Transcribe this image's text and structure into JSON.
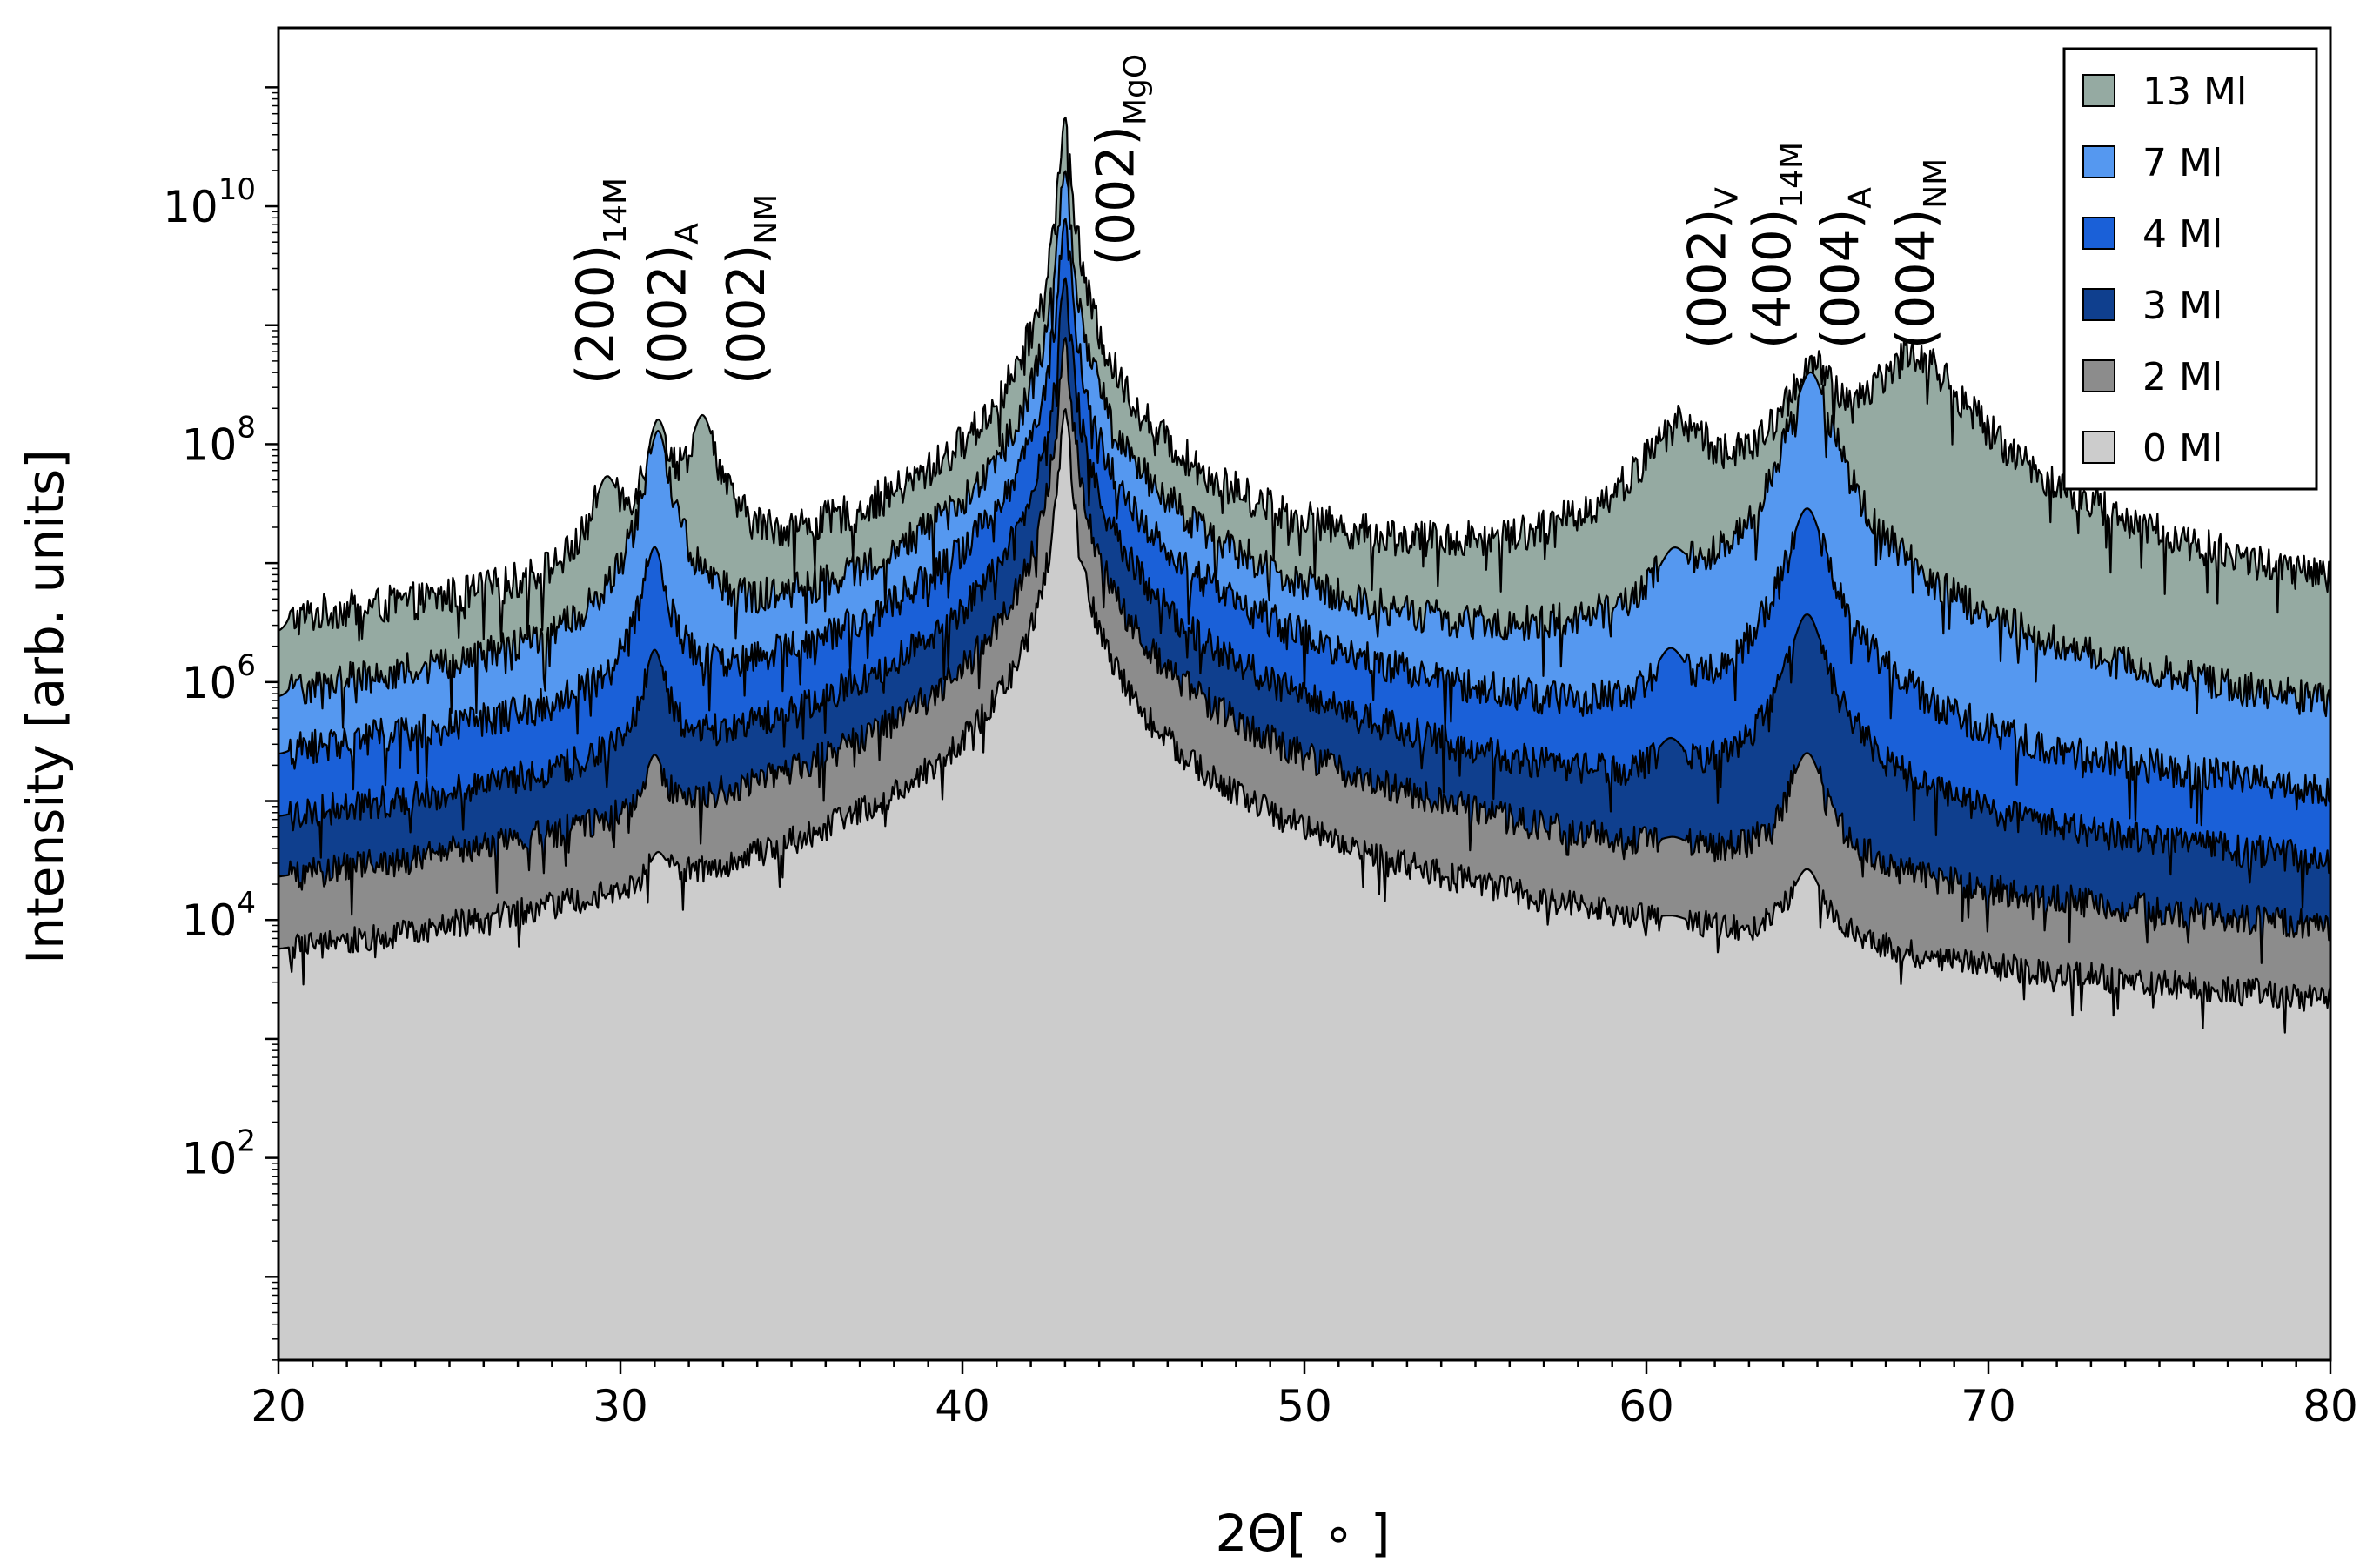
{
  "chart_data": {
    "type": "area",
    "title": "",
    "xlabel": "2Θ[ ∘ ]",
    "ylabel": "Intensity [arb. units]",
    "xlim": [
      20,
      80
    ],
    "ylim_log10": [
      0.3,
      11.5
    ],
    "yscale": "log",
    "x_ticks": [
      20,
      30,
      40,
      50,
      60,
      70,
      80
    ],
    "y_ticks": [
      {
        "exp": 2,
        "base": "10",
        "power": "2"
      },
      {
        "exp": 4,
        "base": "10",
        "power": "4"
      },
      {
        "exp": 6,
        "base": "10",
        "power": "6"
      },
      {
        "exp": 8,
        "base": "10",
        "power": "8"
      },
      {
        "exp": 10,
        "base": "10",
        "power": "10"
      }
    ],
    "legend": {
      "placement": "top-right"
    },
    "series": [
      {
        "name": "13 Ml",
        "color": "#95aaa2",
        "baseline_log10": 5.9,
        "start": [
          [
            20.0,
            5.0
          ],
          [
            20.3,
            5.9
          ],
          [
            21.5,
            6.05
          ]
        ],
        "noise_log10": 0.16,
        "peaks": [
          {
            "x": 29.6,
            "log10": 7.6,
            "w": 0.35
          },
          {
            "x": 31.1,
            "log10": 8.15,
            "w": 0.3
          },
          {
            "x": 32.4,
            "log10": 8.2,
            "w": 0.35
          },
          {
            "x": 43.0,
            "log10": 10.75,
            "w": 0.12
          },
          {
            "x": 43.0,
            "log10": 8.5,
            "w": 0.6
          },
          {
            "x": 43.0,
            "log10": 6.9,
            "w": 2.5
          },
          {
            "x": 61.0,
            "log10": 8.1,
            "w": 0.9
          },
          {
            "x": 64.8,
            "log10": 8.6,
            "w": 0.6
          },
          {
            "x": 67.8,
            "log10": 8.75,
            "w": 1.2
          }
        ]
      },
      {
        "name": "7 Ml",
        "color": "#5598f0",
        "baseline_log10": 5.0,
        "start": [
          [
            20.0,
            4.0
          ],
          [
            20.3,
            5.0
          ],
          [
            21.5,
            5.3
          ]
        ],
        "noise_log10": 0.15,
        "peaks": [
          {
            "x": 31.1,
            "log10": 8.1,
            "w": 0.28
          },
          {
            "x": 31.1,
            "log10": 6.2,
            "w": 1.0
          },
          {
            "x": 43.0,
            "log10": 10.3,
            "w": 0.12
          },
          {
            "x": 43.0,
            "log10": 7.9,
            "w": 0.6
          },
          {
            "x": 43.0,
            "log10": 6.1,
            "w": 2.5
          },
          {
            "x": 60.8,
            "log10": 6.85,
            "w": 0.45
          },
          {
            "x": 64.8,
            "log10": 8.6,
            "w": 0.45
          },
          {
            "x": 64.8,
            "log10": 6.5,
            "w": 1.6
          }
        ]
      },
      {
        "name": "4 Ml",
        "color": "#1a60d8",
        "baseline_log10": 4.0,
        "start": [
          [
            20.0,
            3.0
          ],
          [
            20.3,
            4.0
          ],
          [
            21.5,
            4.6
          ]
        ],
        "noise_log10": 0.15,
        "peaks": [
          {
            "x": 31.0,
            "log10": 7.1,
            "w": 0.28
          },
          {
            "x": 31.0,
            "log10": 5.3,
            "w": 1.0
          },
          {
            "x": 43.0,
            "log10": 9.9,
            "w": 0.12
          },
          {
            "x": 43.0,
            "log10": 7.4,
            "w": 0.6
          },
          {
            "x": 43.0,
            "log10": 5.2,
            "w": 2.5
          },
          {
            "x": 60.7,
            "log10": 6.05,
            "w": 0.45
          },
          {
            "x": 64.7,
            "log10": 7.45,
            "w": 0.45
          },
          {
            "x": 64.7,
            "log10": 5.6,
            "w": 1.8
          }
        ]
      },
      {
        "name": "3 Ml",
        "color": "#0f3f8e",
        "baseline_log10": 3.0,
        "start": [
          [
            20.0,
            2.0
          ],
          [
            20.3,
            3.0
          ],
          [
            21.5,
            3.6
          ]
        ],
        "noise_log10": 0.14,
        "peaks": [
          {
            "x": 31.0,
            "log10": 6.2,
            "w": 0.28
          },
          {
            "x": 31.0,
            "log10": 4.3,
            "w": 1.0
          },
          {
            "x": 43.0,
            "log10": 9.4,
            "w": 0.12
          },
          {
            "x": 43.0,
            "log10": 6.8,
            "w": 0.6
          },
          {
            "x": 43.0,
            "log10": 4.3,
            "w": 2.5
          },
          {
            "x": 60.7,
            "log10": 5.2,
            "w": 0.45
          },
          {
            "x": 64.7,
            "log10": 6.55,
            "w": 0.45
          },
          {
            "x": 64.7,
            "log10": 4.9,
            "w": 1.8
          }
        ]
      },
      {
        "name": "2 Ml",
        "color": "#8c8c8c",
        "baseline_log10": 2.0,
        "start": [
          [
            20.0,
            1.0
          ],
          [
            20.3,
            2.0
          ],
          [
            21.5,
            2.55
          ]
        ],
        "noise_log10": 0.13,
        "peaks": [
          {
            "x": 31.0,
            "log10": 5.2,
            "w": 0.28
          },
          {
            "x": 31.0,
            "log10": 3.3,
            "w": 1.0
          },
          {
            "x": 43.0,
            "log10": 8.9,
            "w": 0.12
          },
          {
            "x": 43.0,
            "log10": 6.3,
            "w": 0.6
          },
          {
            "x": 43.0,
            "log10": 3.4,
            "w": 2.5
          },
          {
            "x": 60.8,
            "log10": 3.9,
            "w": 0.45
          },
          {
            "x": 64.7,
            "log10": 5.35,
            "w": 0.45
          },
          {
            "x": 64.7,
            "log10": 3.6,
            "w": 1.8
          }
        ]
      },
      {
        "name": "0 Ml",
        "color": "#cccccc",
        "baseline_log10": 1.1,
        "start": [
          [
            20.0,
            0.5
          ],
          [
            20.3,
            1.1
          ],
          [
            21.2,
            1.45
          ]
        ],
        "noise_log10": 0.12,
        "peaks": [
          {
            "x": 31.1,
            "log10": 4.2,
            "w": 0.28
          },
          {
            "x": 31.1,
            "log10": 2.3,
            "w": 1.0
          },
          {
            "x": 43.0,
            "log10": 8.3,
            "w": 0.12
          },
          {
            "x": 43.0,
            "log10": 5.6,
            "w": 0.6
          },
          {
            "x": 43.0,
            "log10": 2.4,
            "w": 2.5
          },
          {
            "x": 60.8,
            "log10": 3.0,
            "w": 0.45
          },
          {
            "x": 64.7,
            "log10": 4.3,
            "w": 0.45
          },
          {
            "x": 64.7,
            "log10": 2.6,
            "w": 1.8
          }
        ]
      }
    ],
    "annotations": [
      {
        "main": "(200)",
        "sub": "14M",
        "x": 29.8,
        "log10": 8.5
      },
      {
        "main": "(002)",
        "sub": "A",
        "x": 31.9,
        "log10": 8.5
      },
      {
        "main": "(002)",
        "sub": "NM",
        "x": 34.2,
        "log10": 8.5
      },
      {
        "main": "(002)",
        "sub": "MgO",
        "x": 45.0,
        "log10": 9.5
      },
      {
        "main": "(002)",
        "sub": "V",
        "x": 62.3,
        "log10": 8.8
      },
      {
        "main": "(400)",
        "sub": "14M",
        "x": 64.2,
        "log10": 8.8
      },
      {
        "main": "(004)",
        "sub": "A",
        "x": 66.2,
        "log10": 8.8
      },
      {
        "main": "(004)",
        "sub": "NM",
        "x": 68.4,
        "log10": 8.8
      }
    ]
  }
}
